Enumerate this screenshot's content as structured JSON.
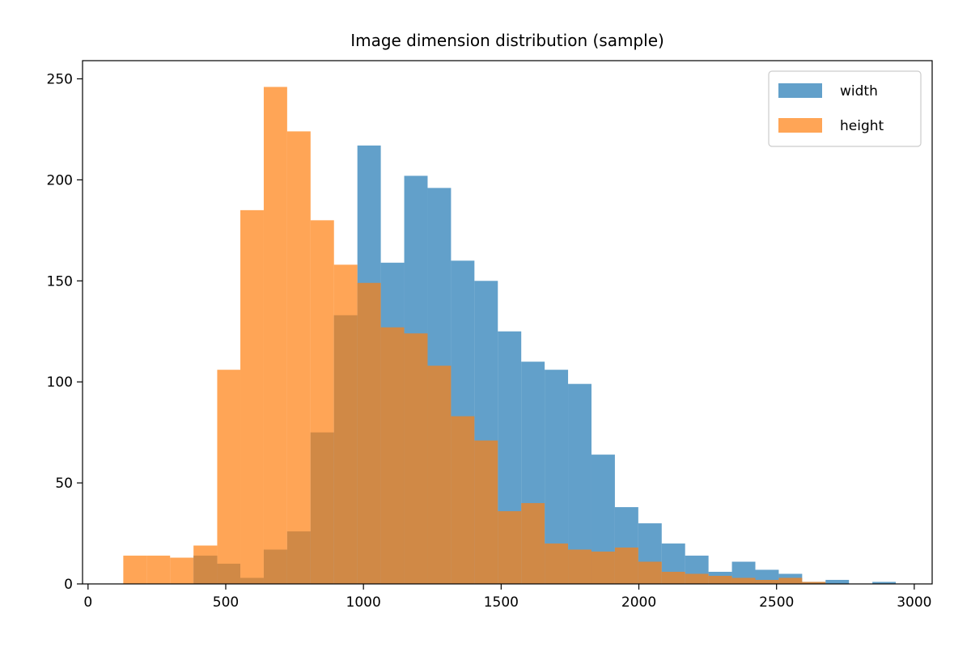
{
  "chart_data": {
    "type": "bar",
    "title": "Image dimension distribution (sample)",
    "xlabel": "",
    "ylabel": "",
    "xlim": [
      -20,
      3065
    ],
    "ylim": [
      0,
      259
    ],
    "xticks": [
      0,
      500,
      1000,
      1500,
      2000,
      2500,
      3000
    ],
    "yticks": [
      0,
      50,
      100,
      150,
      200,
      250
    ],
    "grid": false,
    "legend_position": "top-right",
    "bar_opacity": 0.7,
    "series": [
      {
        "name": "width",
        "color": "#1f77b4",
        "bin_edges": [
          383,
          469,
          553,
          638,
          723,
          808,
          893,
          978,
          1063,
          1148,
          1233,
          1318,
          1403,
          1488,
          1573,
          1658,
          1743,
          1828,
          1913,
          1998,
          2083,
          2168,
          2253,
          2338,
          2423,
          2508,
          2593,
          2678,
          2763,
          2848,
          2933
        ],
        "counts": [
          14,
          10,
          3,
          17,
          26,
          75,
          133,
          217,
          159,
          202,
          196,
          160,
          150,
          125,
          110,
          106,
          99,
          64,
          38,
          30,
          20,
          14,
          6,
          11,
          7,
          5,
          1,
          2,
          0,
          1
        ]
      },
      {
        "name": "height",
        "color": "#ff7f0e",
        "bin_edges": [
          128,
          213,
          298,
          383,
          469,
          553,
          638,
          723,
          808,
          893,
          978,
          1063,
          1148,
          1233,
          1318,
          1403,
          1488,
          1573,
          1658,
          1743,
          1828,
          1913,
          1998,
          2083,
          2168,
          2253,
          2338,
          2423,
          2508,
          2593,
          2678
        ],
        "counts": [
          14,
          14,
          13,
          19,
          106,
          185,
          246,
          224,
          180,
          158,
          149,
          127,
          124,
          108,
          83,
          71,
          36,
          40,
          20,
          17,
          16,
          18,
          11,
          6,
          5,
          4,
          3,
          2,
          3,
          1
        ]
      }
    ]
  }
}
